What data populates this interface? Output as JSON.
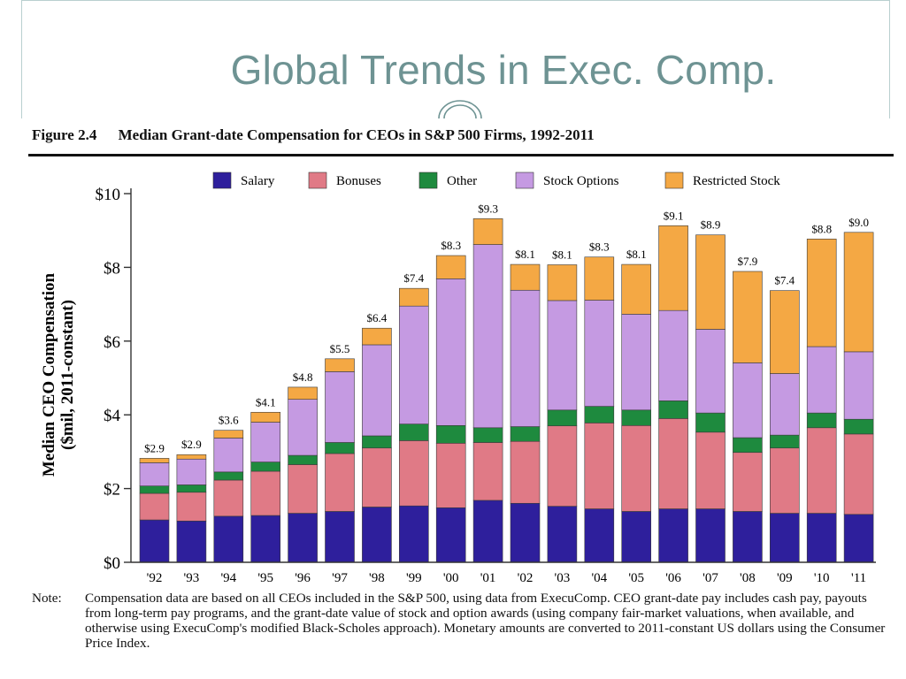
{
  "slide": {
    "title": "Global Trends in Exec. Comp."
  },
  "figure": {
    "number": "Figure 2.4",
    "caption": "Median Grant-date Compensation for CEOs in S&P 500 Firms, 1992-2011"
  },
  "note": {
    "label": "Note:",
    "text": "Compensation data are based on all CEOs included in the S&P 500, using data from ExecuComp. CEO grant-date pay includes cash pay, payouts from long-term pay programs, and the grant-date value of stock and option awards (using company fair-market valuations, when available, and otherwise using ExecuComp's modified Black-Scholes approach). Monetary amounts are converted to 2011-constant US dollars using the Consumer Price Index."
  },
  "colors": {
    "salary": "#2e1f9c",
    "bonuses": "#e07a86",
    "other": "#1e8a3e",
    "stock_options": "#c59ae2",
    "restricted_stock": "#f4a844"
  },
  "chart_data": {
    "type": "bar",
    "stacked": true,
    "ylabel": "Median CEO Compensation ($mil, 2011-constant)",
    "ylim": [
      0,
      10
    ],
    "yticks": [
      "$0",
      "$2",
      "$4",
      "$6",
      "$8",
      "$10"
    ],
    "legend_position": "top",
    "categories": [
      "'92",
      "'93",
      "'94",
      "'95",
      "'96",
      "'97",
      "'98",
      "'99",
      "'00",
      "'01",
      "'02",
      "'03",
      "'04",
      "'05",
      "'06",
      "'07",
      "'08",
      "'09",
      "'10",
      "'11"
    ],
    "totals": [
      "$2.9",
      "$2.9",
      "$3.6",
      "$4.1",
      "$4.8",
      "$5.5",
      "$6.4",
      "$7.4",
      "$8.3",
      "$9.3",
      "$8.1",
      "$8.1",
      "$8.3",
      "$8.1",
      "$9.1",
      "$8.9",
      "$7.9",
      "$7.4",
      "$8.8",
      "$9.0"
    ],
    "series": [
      {
        "name": "Salary",
        "color_key": "salary",
        "values": [
          1.15,
          1.12,
          1.25,
          1.27,
          1.33,
          1.38,
          1.5,
          1.53,
          1.48,
          1.68,
          1.6,
          1.52,
          1.45,
          1.38,
          1.45,
          1.45,
          1.38,
          1.33,
          1.33,
          1.3
        ]
      },
      {
        "name": "Bonuses",
        "color_key": "bonuses",
        "values": [
          0.72,
          0.78,
          0.98,
          1.2,
          1.32,
          1.57,
          1.6,
          1.77,
          1.75,
          1.57,
          1.68,
          2.18,
          2.33,
          2.33,
          2.45,
          2.08,
          1.6,
          1.77,
          2.32,
          2.18
        ]
      },
      {
        "name": "Other",
        "color_key": "other",
        "values": [
          0.2,
          0.2,
          0.22,
          0.25,
          0.25,
          0.3,
          0.33,
          0.45,
          0.48,
          0.4,
          0.4,
          0.43,
          0.45,
          0.42,
          0.48,
          0.52,
          0.4,
          0.35,
          0.4,
          0.4
        ]
      },
      {
        "name": "Stock Options",
        "color_key": "stock_options",
        "values": [
          0.63,
          0.7,
          0.92,
          1.08,
          1.52,
          1.92,
          2.47,
          3.2,
          3.98,
          4.97,
          3.7,
          2.97,
          2.88,
          2.6,
          2.45,
          2.27,
          2.03,
          1.67,
          1.8,
          1.83
        ]
      },
      {
        "name": "Restricted Stock",
        "color_key": "restricted_stock",
        "values": [
          0.12,
          0.12,
          0.21,
          0.27,
          0.33,
          0.35,
          0.45,
          0.48,
          0.63,
          0.7,
          0.7,
          0.97,
          1.17,
          1.35,
          2.3,
          2.56,
          2.48,
          2.25,
          2.92,
          3.24
        ]
      }
    ]
  }
}
